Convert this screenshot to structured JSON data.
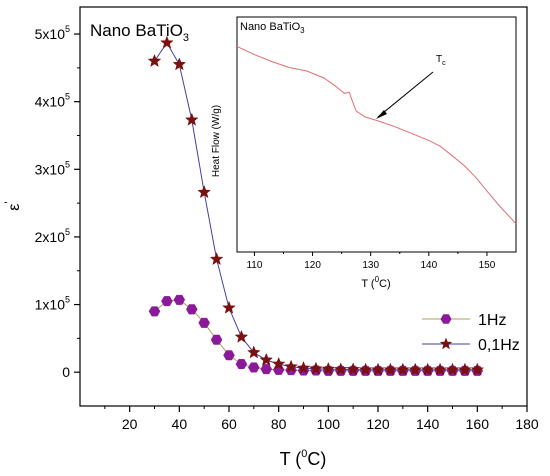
{
  "chart_data": [
    {
      "type": "scatter",
      "panel": "main",
      "title": "Nano BaTiO3",
      "title_parts": {
        "base": "Nano BaTiO",
        "sub": "3"
      },
      "xlabel": "T (0C)",
      "xlabel_parts": {
        "pre": "T (",
        "sup": "0",
        "post": "C)"
      },
      "ylabel": "ε'",
      "ylabel_parts": {
        "base": "ε",
        "sup": "'"
      },
      "xlim": [
        0,
        180
      ],
      "ylim": [
        -50000,
        540000
      ],
      "xticks": [
        20,
        40,
        60,
        80,
        100,
        120,
        140,
        160,
        180
      ],
      "yticks": [
        {
          "value": 0,
          "mantissa": "0",
          "exp": ""
        },
        {
          "value": 100000,
          "mantissa": "1x10",
          "exp": "5"
        },
        {
          "value": 200000,
          "mantissa": "2x10",
          "exp": "5"
        },
        {
          "value": 300000,
          "mantissa": "3x10",
          "exp": "5"
        },
        {
          "value": 400000,
          "mantissa": "4x10",
          "exp": "5"
        },
        {
          "value": 500000,
          "mantissa": "5x10",
          "exp": "5"
        }
      ],
      "legend_position": "bottom-right",
      "series": [
        {
          "name": "1Hz",
          "marker": "hexagon",
          "color": "#8a1a9a",
          "line_color": "#a8a060",
          "x": [
            30,
            35,
            40,
            45,
            50,
            55,
            60,
            65,
            70,
            75,
            80,
            85,
            90,
            95,
            100,
            105,
            110,
            115,
            120,
            125,
            130,
            135,
            140,
            145,
            150,
            155,
            160
          ],
          "y": [
            90000,
            105000,
            107000,
            93000,
            73000,
            48000,
            25000,
            12000,
            7000,
            4500,
            3500,
            3000,
            2500,
            2500,
            2000,
            2000,
            2000,
            2000,
            2000,
            2000,
            2000,
            2000,
            2000,
            2000,
            2000,
            2000,
            2000
          ]
        },
        {
          "name": "0,1Hz",
          "marker": "star",
          "color": "#7a1010",
          "line_color": "#4040a0",
          "x": [
            30,
            35,
            40,
            45,
            50,
            55,
            60,
            65,
            70,
            75,
            80,
            85,
            90,
            95,
            100,
            105,
            110,
            115,
            120,
            125,
            130,
            135,
            140,
            145,
            150,
            155,
            160
          ],
          "y": [
            460000,
            487000,
            455000,
            373000,
            266000,
            167000,
            95000,
            52000,
            29000,
            18000,
            12000,
            8000,
            6000,
            5000,
            4500,
            4000,
            4000,
            3500,
            3500,
            3500,
            3500,
            3500,
            3500,
            3500,
            3500,
            3500,
            3500
          ]
        }
      ]
    },
    {
      "type": "line",
      "panel": "inset",
      "title": "Nano BaTiO3",
      "title_parts": {
        "base": "Nano BaTiO",
        "sub": "3"
      },
      "xlabel": "T (0C)",
      "xlabel_parts": {
        "pre": "T (",
        "sup": "0",
        "post": "C)"
      },
      "ylabel": "Heat Flow (W/g)",
      "xlim": [
        107,
        155
      ],
      "ylim": [
        0,
        1
      ],
      "xticks": [
        110,
        120,
        130,
        140,
        150
      ],
      "y_tick_labels": false,
      "annotation": {
        "label": "Tc",
        "parts": {
          "base": "T",
          "sub": "c"
        },
        "points_to_x": 128
      },
      "series": [
        {
          "color": "#e07070",
          "x": [
            107,
            110,
            113,
            116,
            119,
            122,
            124,
            125.5,
            126.3,
            126.8,
            127.5,
            129,
            131,
            134,
            137,
            140,
            142,
            144,
            146,
            148,
            150,
            152,
            155
          ],
          "y": [
            0.875,
            0.84,
            0.81,
            0.785,
            0.77,
            0.74,
            0.705,
            0.675,
            0.68,
            0.645,
            0.6,
            0.575,
            0.56,
            0.535,
            0.505,
            0.475,
            0.45,
            0.41,
            0.37,
            0.32,
            0.26,
            0.2,
            0.12
          ]
        }
      ]
    }
  ]
}
